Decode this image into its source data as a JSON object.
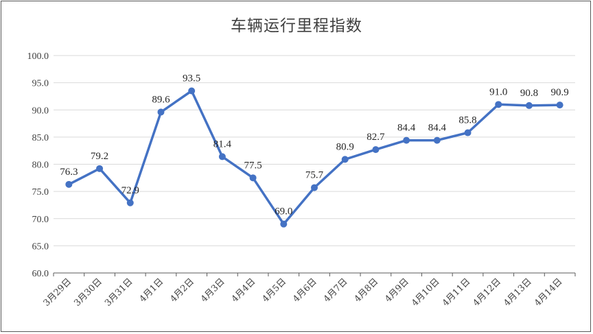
{
  "chart_data": {
    "type": "line",
    "title": "车辆运行里程指数",
    "xlabel": "",
    "ylabel": "",
    "ylim": [
      60.0,
      100.0
    ],
    "yticks": [
      "60.0",
      "65.0",
      "70.0",
      "75.0",
      "80.0",
      "85.0",
      "90.0",
      "95.0",
      "100.0"
    ],
    "categories": [
      "3月29日",
      "3月30日",
      "3月31日",
      "4月1日",
      "4月2日",
      "4月3日",
      "4月4日",
      "4月5日",
      "4月6日",
      "4月7日",
      "4月8日",
      "4月9日",
      "4月10日",
      "4月11日",
      "4月12日",
      "4月13日",
      "4月14日"
    ],
    "series": [
      {
        "values": [
          76.3,
          79.2,
          72.9,
          89.6,
          93.5,
          81.4,
          77.5,
          69.0,
          75.7,
          80.9,
          82.7,
          84.4,
          84.4,
          85.8,
          91.0,
          90.8,
          90.9
        ],
        "color": "#4472C4"
      }
    ],
    "grid": true,
    "legend": "none",
    "colors": {
      "line": "#4472C4",
      "grid": "#D9D9D9",
      "axis": "#595959"
    }
  }
}
